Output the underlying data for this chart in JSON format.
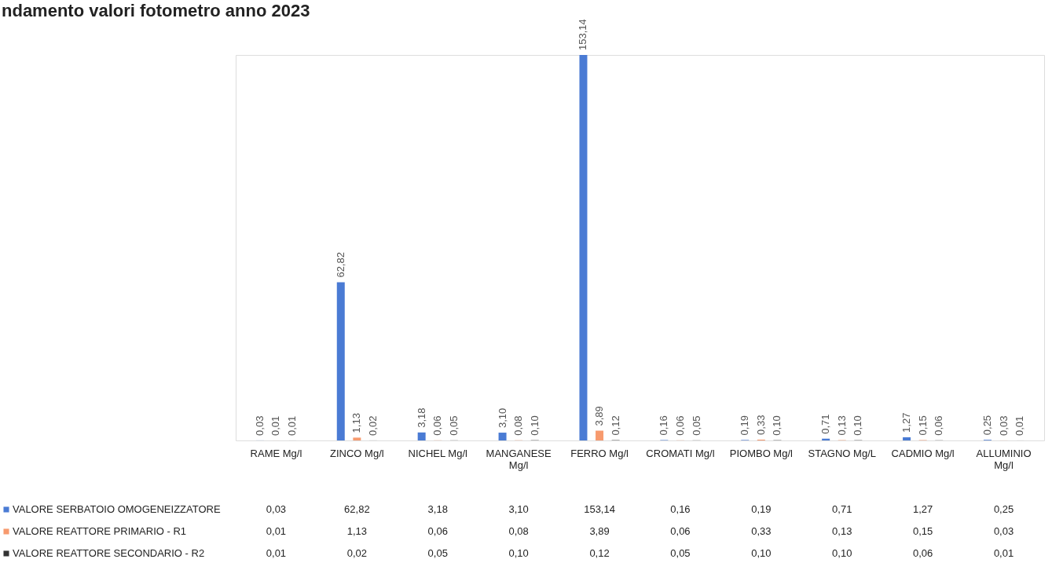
{
  "chart_data": {
    "type": "bar",
    "title": "ndamento valori fotometro anno 2023",
    "categories": [
      "RAME Mg/l",
      "ZINCO Mg/l",
      "NICHEL Mg/l",
      "MANGANESE Mg/l",
      "FERRO Mg/l",
      "CROMATI Mg/l",
      "PIOMBO Mg/l",
      "STAGNO Mg/L",
      "CADMIO Mg/l",
      "ALLUMINIO Mg/l"
    ],
    "series": [
      {
        "name": "VALORE SERBATOIO OMOGENEIZZATORE",
        "color": "#4a7bd4",
        "values": [
          0.03,
          62.82,
          3.18,
          3.1,
          153.14,
          0.16,
          0.19,
          0.71,
          1.27,
          0.25
        ],
        "value_labels": [
          "0,03",
          "62,82",
          "3,18",
          "3,10",
          "153,14",
          "0,16",
          "0,19",
          "0,71",
          "1,27",
          "0,25"
        ]
      },
      {
        "name": "VALORE REATTORE PRIMARIO - R1",
        "color": "#f79a6e",
        "values": [
          0.01,
          1.13,
          0.06,
          0.08,
          3.89,
          0.06,
          0.33,
          0.13,
          0.15,
          0.03
        ],
        "value_labels": [
          "0,01",
          "1,13",
          "0,06",
          "0,08",
          "3,89",
          "0,06",
          "0,33",
          "0,13",
          "0,15",
          "0,03"
        ]
      },
      {
        "name": "VALORE REATTORE SECONDARIO - R2",
        "color": "#333333",
        "values": [
          0.01,
          0.02,
          0.05,
          0.1,
          0.12,
          0.05,
          0.1,
          0.1,
          0.06,
          0.01
        ],
        "value_labels": [
          "0,01",
          "0,02",
          "0,05",
          "0,10",
          "0,12",
          "0,05",
          "0,10",
          "0,10",
          "0,06",
          "0,01"
        ]
      }
    ],
    "legend": "bottom"
  }
}
